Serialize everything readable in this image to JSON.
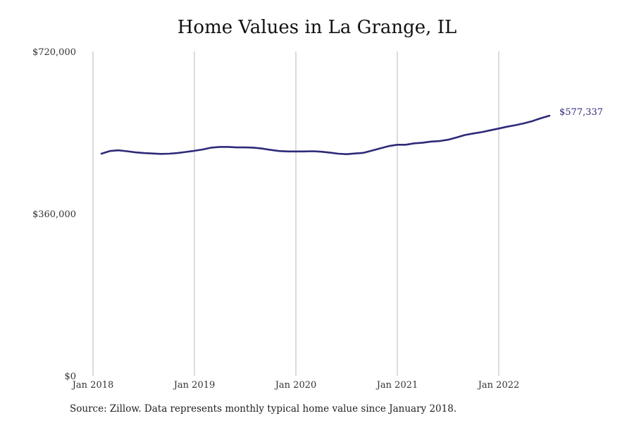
{
  "chart_data": {
    "type": "line",
    "title": "Home Values in La Grange, IL",
    "xlabel": "",
    "ylabel": "",
    "ylim": [
      0,
      720000
    ],
    "y_ticks": [
      {
        "value": 0,
        "label": "$0"
      },
      {
        "value": 360000,
        "label": "$360,000"
      },
      {
        "value": 720000,
        "label": "$720,000"
      }
    ],
    "x_ticks": [
      {
        "value": "2018-01",
        "label": "Jan 2018"
      },
      {
        "value": "2019-01",
        "label": "Jan 2019"
      },
      {
        "value": "2020-01",
        "label": "Jan 2020"
      },
      {
        "value": "2021-01",
        "label": "Jan 2021"
      },
      {
        "value": "2022-01",
        "label": "Jan 2022"
      }
    ],
    "grid": "vertical",
    "line_color": "#2e2a78",
    "end_label": "$577,337",
    "series": [
      {
        "x": [
          "2018-01",
          "2018-02",
          "2018-03",
          "2018-04",
          "2018-05",
          "2018-06",
          "2018-07",
          "2018-08",
          "2018-09",
          "2018-10",
          "2018-11",
          "2018-12",
          "2019-01",
          "2019-02",
          "2019-03",
          "2019-04",
          "2019-05",
          "2019-06",
          "2019-07",
          "2019-08",
          "2019-09",
          "2019-10",
          "2019-11",
          "2019-12",
          "2020-01",
          "2020-02",
          "2020-03",
          "2020-04",
          "2020-05",
          "2020-06",
          "2020-07",
          "2020-08",
          "2020-09",
          "2020-10",
          "2020-11",
          "2020-12",
          "2021-01",
          "2021-02",
          "2021-03",
          "2021-04",
          "2021-05",
          "2021-06",
          "2021-07",
          "2021-08",
          "2021-09",
          "2021-10",
          "2021-11",
          "2021-12",
          "2022-01",
          "2022-02",
          "2022-03",
          "2022-04",
          "2022-05",
          "2022-06"
        ],
        "values": [
          493000,
          499000,
          500500,
          498500,
          496000,
          494500,
          493500,
          492500,
          493000,
          494500,
          497000,
          499500,
          502500,
          506500,
          508000,
          508000,
          507000,
          507000,
          506500,
          504500,
          501500,
          499000,
          498000,
          498000,
          498000,
          498500,
          497500,
          495500,
          493000,
          492000,
          493500,
          495000,
          500000,
          505000,
          510000,
          513000,
          513000,
          516000,
          517500,
          520000,
          521000,
          524000,
          529000,
          534500,
          538000,
          541000,
          545000,
          549000,
          553000,
          556500,
          560500,
          565500,
          572000,
          577337
        ]
      }
    ]
  },
  "footer": {
    "source": "Source: Zillow. Data represents monthly typical home value since January 2018."
  }
}
